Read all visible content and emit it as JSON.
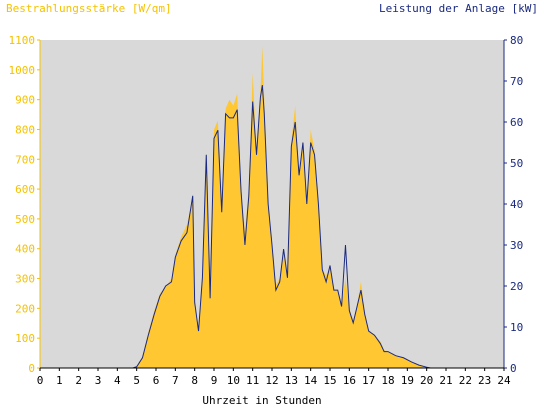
{
  "chart_data": {
    "type": "area",
    "left_axis_label": "Bestrahlungsstärke [W/qm]",
    "right_axis_label": "Leistung der Anlage [kW]",
    "xlabel": "Uhrzeit in Stunden",
    "xlim": [
      0,
      24
    ],
    "ylim_left": [
      0,
      1100
    ],
    "ylim_right": [
      0,
      80
    ],
    "x_ticks": [
      "0",
      "1",
      "2",
      "3",
      "4",
      "5",
      "6",
      "7",
      "8",
      "9",
      "10",
      "11",
      "12",
      "13",
      "14",
      "15",
      "16",
      "17",
      "18",
      "19",
      "20",
      "21",
      "22",
      "23",
      "24"
    ],
    "y_ticks_left": [
      "0",
      "100",
      "200",
      "300",
      "400",
      "500",
      "600",
      "700",
      "800",
      "900",
      "1000",
      "1100"
    ],
    "y_ticks_right": [
      "0",
      "10",
      "20",
      "30",
      "40",
      "50",
      "60",
      "70",
      "80"
    ],
    "grid": false,
    "plot_background": "#d9d9d9",
    "series": [
      {
        "name": "Bestrahlungsstärke",
        "axis": "left",
        "style": "filled-area",
        "color": "#ffc832",
        "points": [
          [
            0,
            0
          ],
          [
            4.8,
            0
          ],
          [
            5.0,
            5
          ],
          [
            5.3,
            40
          ],
          [
            5.6,
            120
          ],
          [
            5.9,
            190
          ],
          [
            6.2,
            250
          ],
          [
            6.5,
            270
          ],
          [
            6.8,
            300
          ],
          [
            7.0,
            380
          ],
          [
            7.3,
            440
          ],
          [
            7.6,
            480
          ],
          [
            7.9,
            570
          ],
          [
            8.0,
            200
          ],
          [
            8.2,
            130
          ],
          [
            8.4,
            320
          ],
          [
            8.6,
            720
          ],
          [
            8.8,
            280
          ],
          [
            9.0,
            800
          ],
          [
            9.2,
            830
          ],
          [
            9.4,
            540
          ],
          [
            9.6,
            870
          ],
          [
            9.8,
            900
          ],
          [
            10.0,
            880
          ],
          [
            10.2,
            920
          ],
          [
            10.4,
            600
          ],
          [
            10.6,
            460
          ],
          [
            10.8,
            600
          ],
          [
            11.0,
            990
          ],
          [
            11.2,
            720
          ],
          [
            11.4,
            920
          ],
          [
            11.5,
            1080
          ],
          [
            11.6,
            900
          ],
          [
            11.8,
            560
          ],
          [
            12.0,
            410
          ],
          [
            12.2,
            280
          ],
          [
            12.4,
            300
          ],
          [
            12.6,
            400
          ],
          [
            12.8,
            300
          ],
          [
            13.0,
            760
          ],
          [
            13.2,
            880
          ],
          [
            13.4,
            640
          ],
          [
            13.6,
            760
          ],
          [
            13.8,
            560
          ],
          [
            14.0,
            800
          ],
          [
            14.2,
            730
          ],
          [
            14.4,
            560
          ],
          [
            14.6,
            330
          ],
          [
            14.8,
            310
          ],
          [
            15.0,
            340
          ],
          [
            15.2,
            260
          ],
          [
            15.4,
            260
          ],
          [
            15.6,
            210
          ],
          [
            15.8,
            300
          ],
          [
            16.0,
            200
          ],
          [
            16.2,
            160
          ],
          [
            16.4,
            210
          ],
          [
            16.6,
            290
          ],
          [
            16.8,
            190
          ],
          [
            17.0,
            130
          ],
          [
            17.3,
            110
          ],
          [
            17.6,
            90
          ],
          [
            17.8,
            60
          ],
          [
            18.0,
            55
          ],
          [
            18.4,
            40
          ],
          [
            18.8,
            35
          ],
          [
            19.2,
            20
          ],
          [
            19.6,
            10
          ],
          [
            20.0,
            3
          ],
          [
            20.2,
            0
          ],
          [
            24,
            0
          ]
        ]
      },
      {
        "name": "Leistung der Anlage",
        "axis": "right",
        "style": "line",
        "color": "#1a2a80",
        "points": [
          [
            0,
            0
          ],
          [
            4.8,
            0
          ],
          [
            5.0,
            0.3
          ],
          [
            5.3,
            2.5
          ],
          [
            5.6,
            8
          ],
          [
            5.9,
            13
          ],
          [
            6.2,
            17.5
          ],
          [
            6.5,
            20
          ],
          [
            6.8,
            21
          ],
          [
            7.0,
            27
          ],
          [
            7.3,
            31
          ],
          [
            7.6,
            33
          ],
          [
            7.9,
            42
          ],
          [
            8.0,
            16
          ],
          [
            8.2,
            9
          ],
          [
            8.4,
            22
          ],
          [
            8.6,
            52
          ],
          [
            8.8,
            17
          ],
          [
            9.0,
            56
          ],
          [
            9.2,
            58
          ],
          [
            9.4,
            38
          ],
          [
            9.6,
            62
          ],
          [
            9.8,
            61
          ],
          [
            10.0,
            61
          ],
          [
            10.2,
            63
          ],
          [
            10.4,
            43
          ],
          [
            10.6,
            30
          ],
          [
            10.8,
            42
          ],
          [
            11.0,
            65
          ],
          [
            11.2,
            52
          ],
          [
            11.4,
            66
          ],
          [
            11.5,
            69
          ],
          [
            11.6,
            62
          ],
          [
            11.8,
            40
          ],
          [
            12.0,
            30
          ],
          [
            12.2,
            19
          ],
          [
            12.4,
            21
          ],
          [
            12.6,
            29
          ],
          [
            12.8,
            22
          ],
          [
            13.0,
            54
          ],
          [
            13.2,
            60
          ],
          [
            13.4,
            47
          ],
          [
            13.6,
            55
          ],
          [
            13.8,
            40
          ],
          [
            14.0,
            55
          ],
          [
            14.2,
            52
          ],
          [
            14.4,
            40
          ],
          [
            14.6,
            24
          ],
          [
            14.8,
            21
          ],
          [
            15.0,
            25
          ],
          [
            15.2,
            19
          ],
          [
            15.4,
            19
          ],
          [
            15.6,
            15
          ],
          [
            15.8,
            30
          ],
          [
            16.0,
            14
          ],
          [
            16.2,
            11
          ],
          [
            16.4,
            15
          ],
          [
            16.6,
            19
          ],
          [
            16.8,
            13
          ],
          [
            17.0,
            9
          ],
          [
            17.3,
            8
          ],
          [
            17.6,
            6
          ],
          [
            17.8,
            4
          ],
          [
            18.0,
            4
          ],
          [
            18.4,
            3
          ],
          [
            18.8,
            2.5
          ],
          [
            19.2,
            1.5
          ],
          [
            19.6,
            0.7
          ],
          [
            20.0,
            0.2
          ],
          [
            20.2,
            0
          ],
          [
            24,
            0
          ]
        ]
      }
    ]
  }
}
